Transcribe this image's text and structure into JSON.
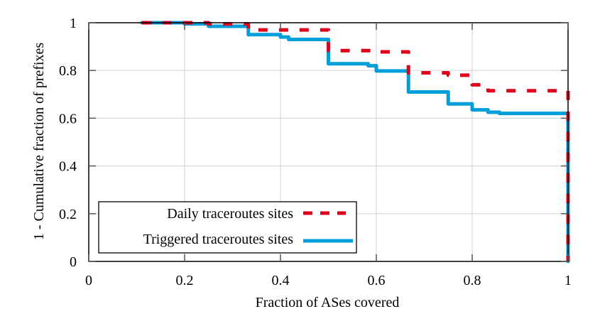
{
  "chart_data": {
    "type": "line",
    "step": true,
    "title": "",
    "xlabel": "Fraction of ASes covered",
    "ylabel": "1 - Cumulative fraction of prefixes",
    "xlim": [
      0,
      1
    ],
    "ylim": [
      0,
      1
    ],
    "xticks": [
      0,
      0.2,
      0.4,
      0.6,
      0.8,
      1
    ],
    "xtick_labels": [
      "0",
      "0.2",
      "0.4",
      "0.6",
      "0.8",
      "1"
    ],
    "yticks": [
      0,
      0.2,
      0.4,
      0.6,
      0.8,
      1
    ],
    "ytick_labels": [
      "0",
      "0.2",
      "0.4",
      "0.6",
      "0.8",
      "1"
    ],
    "grid": true,
    "legend_position": "bottom-left",
    "series": [
      {
        "name": "Daily traceroutes sites",
        "color": "#e0001b",
        "style": "dashed",
        "x": [
          0.111,
          0.25,
          0.333,
          0.333,
          0.5,
          0.5,
          0.6,
          0.667,
          0.667,
          0.75,
          0.8,
          0.833,
          1.0,
          1.0
        ],
        "y": [
          1.0,
          0.995,
          0.99,
          0.97,
          0.96,
          0.883,
          0.878,
          0.855,
          0.79,
          0.78,
          0.74,
          0.715,
          0.695,
          0.0
        ]
      },
      {
        "name": "Triggered traceroutes sites",
        "color": "#009fdb",
        "style": "solid",
        "x": [
          0.111,
          0.2,
          0.25,
          0.333,
          0.333,
          0.4,
          0.417,
          0.5,
          0.5,
          0.583,
          0.6,
          0.667,
          0.667,
          0.75,
          0.75,
          0.8,
          0.833,
          0.857,
          1.0,
          1.0
        ],
        "y": [
          1.0,
          0.995,
          0.985,
          0.98,
          0.95,
          0.94,
          0.93,
          0.928,
          0.828,
          0.82,
          0.798,
          0.795,
          0.71,
          0.7,
          0.66,
          0.635,
          0.625,
          0.62,
          0.62,
          0.0
        ]
      }
    ]
  }
}
